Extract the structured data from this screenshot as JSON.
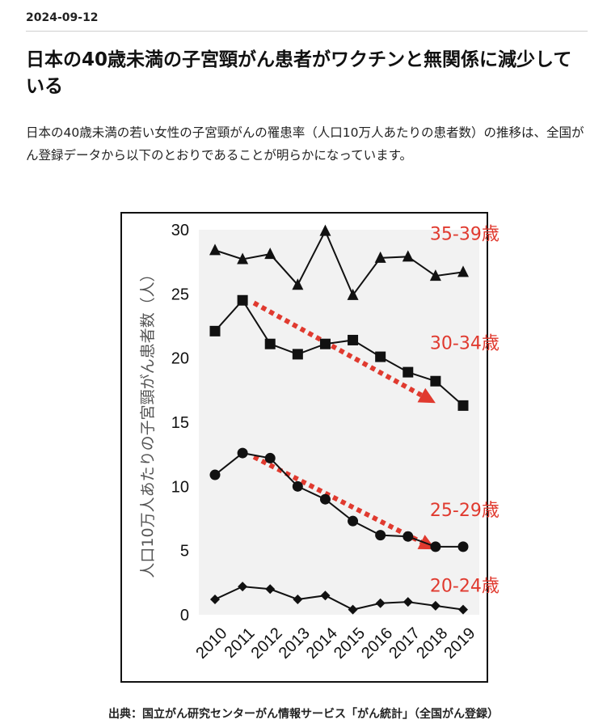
{
  "article": {
    "date": "2024-09-12",
    "title": "日本の40歳未満の子宮頸がん患者がワクチンと無関係に減少している",
    "body": "日本の40歳未満の若い女性の子宮頸がんの罹患率（人口10万人あたりの患者数）の推移は、全国がん登録データから以下のとおりであることが明らかになっています。",
    "caption": "出典：国立がん研究センターがん情報サービス「がん統計」（全国がん登録）"
  },
  "chart_data": {
    "type": "line",
    "title": "",
    "xlabel": "",
    "ylabel": "人口10万人あたりの子宮頸がん患者数（人）",
    "x": [
      "2010",
      "2011",
      "2012",
      "2013",
      "2014",
      "2015",
      "2016",
      "2017",
      "2018",
      "2019"
    ],
    "ylim": [
      0,
      30
    ],
    "yticks": [
      0,
      5,
      10,
      15,
      20,
      25,
      30
    ],
    "grid": false,
    "background_color": "#f2f2f2",
    "series": [
      {
        "name": "35-39歳",
        "marker": "triangle",
        "values": [
          28.4,
          27.7,
          28.1,
          25.7,
          29.9,
          24.9,
          27.8,
          27.9,
          26.4,
          26.7
        ]
      },
      {
        "name": "30-34歳",
        "marker": "square",
        "values": [
          22.1,
          24.5,
          21.1,
          20.3,
          21.1,
          21.4,
          20.1,
          18.9,
          18.2,
          16.3
        ]
      },
      {
        "name": "25-29歳",
        "marker": "circle",
        "values": [
          10.9,
          12.6,
          12.2,
          10.0,
          9.0,
          7.3,
          6.2,
          6.1,
          5.3,
          5.3
        ]
      },
      {
        "name": "20-24歳",
        "marker": "diamond",
        "values": [
          1.2,
          2.2,
          2.0,
          1.2,
          1.5,
          0.4,
          0.9,
          1.0,
          0.7,
          0.4
        ]
      }
    ],
    "trend_arrows": [
      {
        "series": "30-34歳",
        "from": [
          "2011",
          24.3
        ],
        "to": [
          "2018",
          16.5
        ],
        "color": "#e03a2f"
      },
      {
        "series": "25-29歳",
        "from": [
          "2011",
          12.3
        ],
        "to": [
          "2018",
          5.1
        ],
        "color": "#e03a2f"
      }
    ],
    "colors": {
      "line": "#111111",
      "label": "#e03a2f",
      "arrow": "#e03a2f"
    }
  }
}
